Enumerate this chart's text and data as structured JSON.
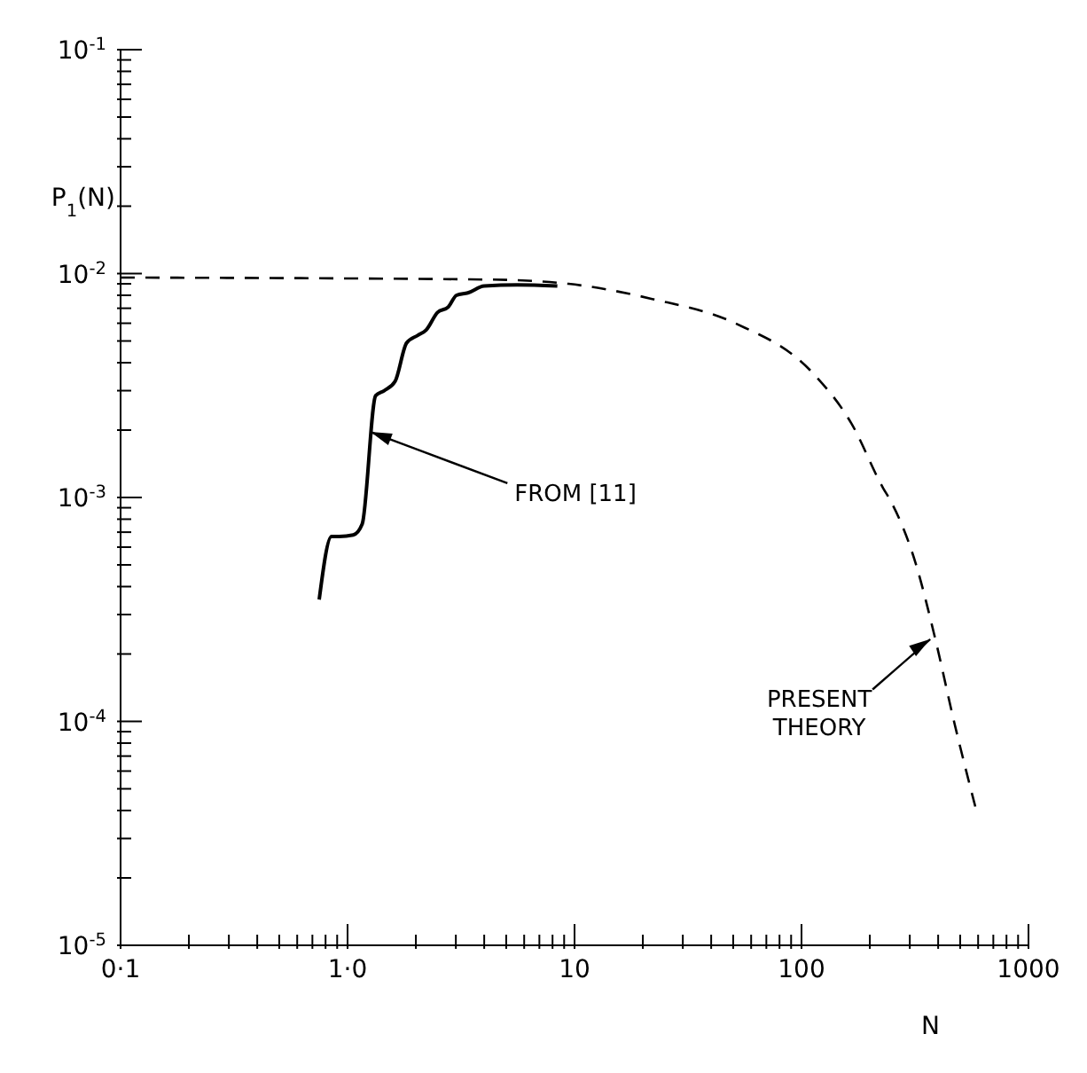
{
  "chart_data": {
    "type": "line",
    "xlabel": "N",
    "ylabel": "P$_{1}$(N)",
    "log": "xy",
    "xlim": [
      0.1,
      1000
    ],
    "ylim": [
      1e-05,
      0.1
    ],
    "xticks": [
      {
        "value": 0.1,
        "label": "0·1"
      },
      {
        "value": 0.2,
        "label": null
      },
      {
        "value": 0.3,
        "label": null
      },
      {
        "value": 0.4,
        "label": null
      },
      {
        "value": 0.5,
        "label": null
      },
      {
        "value": 0.6,
        "label": null
      },
      {
        "value": 0.7,
        "label": null
      },
      {
        "value": 0.8,
        "label": null
      },
      {
        "value": 0.9,
        "label": null
      },
      {
        "value": 1,
        "label": "1·0"
      },
      {
        "value": 2,
        "label": null
      },
      {
        "value": 3,
        "label": null
      },
      {
        "value": 4,
        "label": null
      },
      {
        "value": 5,
        "label": null
      },
      {
        "value": 6,
        "label": null
      },
      {
        "value": 7,
        "label": null
      },
      {
        "value": 8,
        "label": null
      },
      {
        "value": 9,
        "label": null
      },
      {
        "value": 10,
        "label": "10"
      },
      {
        "value": 20,
        "label": null
      },
      {
        "value": 30,
        "label": null
      },
      {
        "value": 40,
        "label": null
      },
      {
        "value": 50,
        "label": null
      },
      {
        "value": 60,
        "label": null
      },
      {
        "value": 70,
        "label": null
      },
      {
        "value": 80,
        "label": null
      },
      {
        "value": 90,
        "label": null
      },
      {
        "value": 100,
        "label": "100"
      },
      {
        "value": 200,
        "label": null
      },
      {
        "value": 300,
        "label": null
      },
      {
        "value": 400,
        "label": null
      },
      {
        "value": 500,
        "label": null
      },
      {
        "value": 600,
        "label": null
      },
      {
        "value": 700,
        "label": null
      },
      {
        "value": 800,
        "label": null
      },
      {
        "value": 900,
        "label": null
      },
      {
        "value": 1000,
        "label": "1000"
      }
    ],
    "yticks": [
      {
        "value": 1e-05,
        "label": "10$^{-5}$"
      },
      {
        "value": 2e-05,
        "label": null
      },
      {
        "value": 3e-05,
        "label": null
      },
      {
        "value": 4e-05,
        "label": null
      },
      {
        "value": 5e-05,
        "label": null
      },
      {
        "value": 6e-05,
        "label": null
      },
      {
        "value": 7e-05,
        "label": null
      },
      {
        "value": 8e-05,
        "label": null
      },
      {
        "value": 9e-05,
        "label": null
      },
      {
        "value": 0.0001,
        "label": "10$^{-4}$"
      },
      {
        "value": 0.0002,
        "label": null
      },
      {
        "value": 0.0003,
        "label": null
      },
      {
        "value": 0.0004,
        "label": null
      },
      {
        "value": 0.0005,
        "label": null
      },
      {
        "value": 0.0006,
        "label": null
      },
      {
        "value": 0.0007,
        "label": null
      },
      {
        "value": 0.0008,
        "label": null
      },
      {
        "value": 0.0009,
        "label": null
      },
      {
        "value": 0.001,
        "label": "10$^{-3}$"
      },
      {
        "value": 0.002,
        "label": null
      },
      {
        "value": 0.003,
        "label": null
      },
      {
        "value": 0.004,
        "label": null
      },
      {
        "value": 0.005,
        "label": null
      },
      {
        "value": 0.006,
        "label": null
      },
      {
        "value": 0.007,
        "label": null
      },
      {
        "value": 0.008,
        "label": null
      },
      {
        "value": 0.009,
        "label": null
      },
      {
        "value": 0.01,
        "label": "10$^{-2}$"
      },
      {
        "value": 0.02,
        "label": null
      },
      {
        "value": 0.03,
        "label": null
      },
      {
        "value": 0.04,
        "label": null
      },
      {
        "value": 0.05,
        "label": null
      },
      {
        "value": 0.06,
        "label": null
      },
      {
        "value": 0.07,
        "label": null
      },
      {
        "value": 0.08,
        "label": null
      },
      {
        "value": 0.09,
        "label": null
      },
      {
        "value": 0.1,
        "label": "10$^{-1}$"
      }
    ],
    "marker": "none",
    "series": [
      {
        "color": "#000000",
        "line_style": "solid",
        "x": [
          0.75,
          0.85,
          0.92,
          1.06,
          1.16,
          1.33,
          1.45,
          1.62,
          1.82,
          2.04,
          2.22,
          2.49,
          2.78,
          3.02,
          3.39,
          4.0,
          5.6,
          8.4
        ],
        "values": [
          0.00035,
          0.00067,
          0.00067,
          0.00068,
          0.00076,
          0.00285,
          0.003,
          0.0033,
          0.0049,
          0.0053,
          0.0056,
          0.0067,
          0.0071,
          0.008,
          0.0082,
          0.0088,
          0.0089,
          0.0088
        ]
      },
      {
        "color": "#000000",
        "line_style": "dashed",
        "x": [
          0.1,
          4.3,
          9.4,
          22,
          51,
          112,
          166,
          229,
          245,
          318,
          386,
          472,
          589
        ],
        "values": [
          0.0096,
          0.0094,
          0.009,
          0.0077,
          0.006,
          0.0036,
          0.00214,
          0.0011,
          0.00098,
          0.00051,
          0.00024,
          9.8e-05,
          4e-05
        ]
      }
    ],
    "annotations": [
      {
        "text": "FROM [11]",
        "x": 1.2,
        "y": 0.002
      },
      {
        "text": "PRESENT THEORY",
        "x": 386,
        "y": 0.00024
      }
    ]
  }
}
